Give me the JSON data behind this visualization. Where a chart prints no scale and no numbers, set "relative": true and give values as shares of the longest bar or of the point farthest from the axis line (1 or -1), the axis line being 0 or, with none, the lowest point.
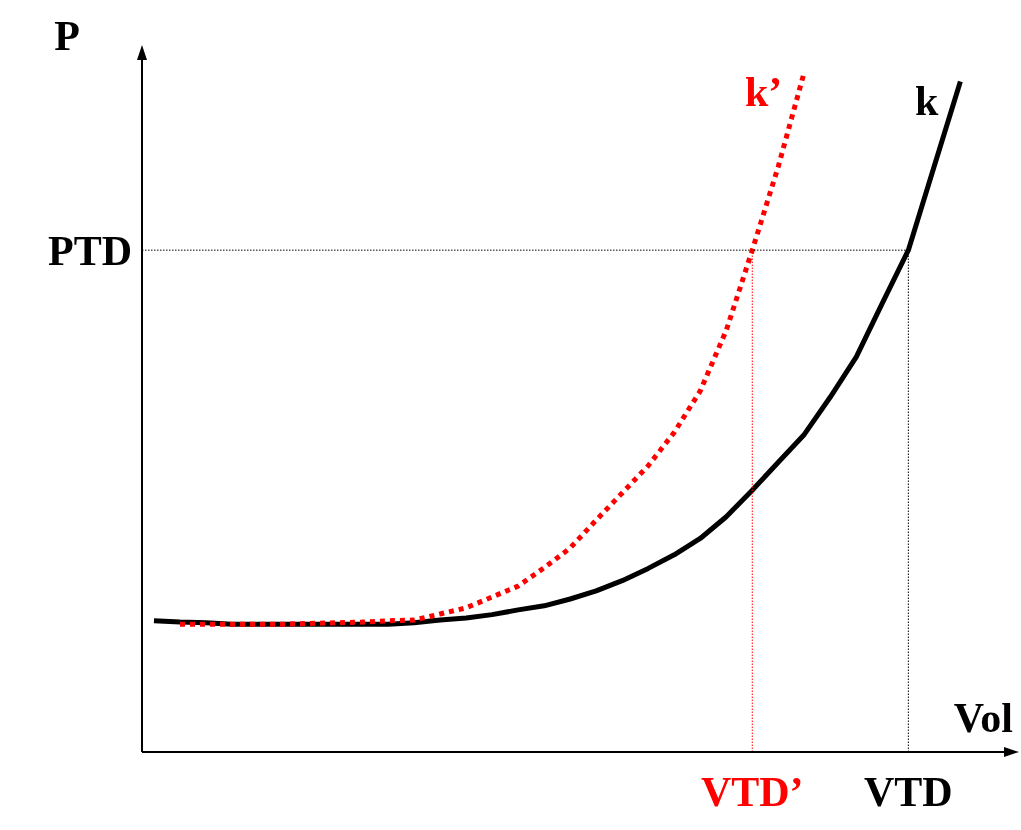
{
  "chart_data": {
    "type": "line",
    "relative": true,
    "xlabel": "Vol",
    "ylabel": "P",
    "legend": false,
    "marker": "none",
    "categories": [
      null,
      null,
      null,
      null,
      null,
      null,
      null,
      null,
      null,
      null,
      null,
      null,
      null,
      null,
      null,
      null,
      null,
      null,
      null,
      null,
      null,
      null,
      null,
      "VTD’",
      null,
      null,
      null,
      null,
      null,
      "VTD",
      null,
      null
    ],
    "series": [
      {
        "name": "k",
        "color": "#000000",
        "line_style": "solid",
        "values": [
          0.193,
          0.191,
          0.19,
          0.188,
          0.188,
          0.188,
          0.188,
          0.188,
          0.188,
          0.188,
          0.19,
          0.194,
          0.197,
          0.202,
          0.209,
          0.215,
          0.225,
          0.237,
          0.252,
          0.27,
          0.29,
          0.314,
          0.346,
          0.385,
          0.426,
          0.467,
          0.522,
          0.581,
          0.66,
          0.738,
          0.862,
          0.986
        ]
      },
      {
        "name": "k’",
        "color": "#ff0000",
        "line_style": "dotted",
        "values": [
          null,
          0.188,
          0.188,
          0.188,
          0.188,
          0.188,
          0.189,
          0.19,
          0.191,
          0.193,
          0.194,
          0.203,
          0.212,
          0.228,
          0.244,
          0.271,
          0.3,
          0.341,
          0.381,
          0.421,
          0.47,
          0.531,
          0.62,
          0.738,
          0.861,
          1,
          null,
          null,
          null,
          null,
          null,
          null
        ]
      }
    ],
    "ref_lines": [
      {
        "axis": "y",
        "value": 0.738,
        "label": "PTD",
        "color": "#000000",
        "line_style": "dotted"
      },
      {
        "axis": "x",
        "value": "VTD’",
        "color": "#ff0000",
        "line_style": "dotted"
      },
      {
        "axis": "x",
        "value": "VTD",
        "color": "#000000",
        "line_style": "dotted"
      }
    ]
  }
}
